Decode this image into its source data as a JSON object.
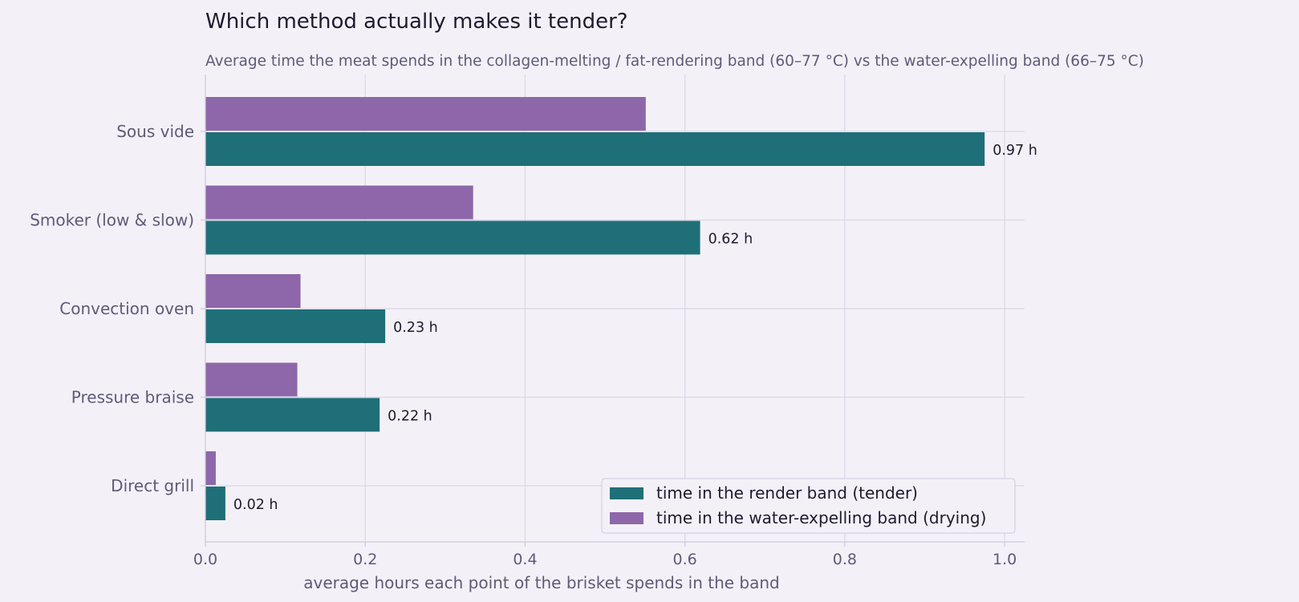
{
  "chart_data": {
    "type": "bar",
    "orientation": "horizontal",
    "title": "Which method actually makes it tender?",
    "subtitle": "Average time the meat spends in the collagen-melting / fat-rendering band (60–77 °C) vs the water-expelling band (66–75 °C)",
    "xlabel": "average hours each point of the brisket spends in the band",
    "ylabel": "",
    "xlim": [
      0,
      1.025
    ],
    "xticks": [
      0.0,
      0.2,
      0.4,
      0.6,
      0.8,
      1.0
    ],
    "xtick_labels": [
      "0.0",
      "0.2",
      "0.4",
      "0.6",
      "0.8",
      "1.0"
    ],
    "grid": true,
    "legend_position": "lower-right",
    "categories": [
      "Sous vide",
      "Smoker (low & slow)",
      "Convection oven",
      "Pressure braise",
      "Direct grill"
    ],
    "series": [
      {
        "name": "time in the render band (tender)",
        "color": "#1f6f78",
        "values": [
          0.975,
          0.619,
          0.225,
          0.218,
          0.025
        ],
        "data_labels": [
          "0.97 h",
          "0.62 h",
          "0.23 h",
          "0.22 h",
          "0.02 h"
        ]
      },
      {
        "name": "time in the water-expelling band (drying)",
        "color": "#8e67aa",
        "values": [
          0.551,
          0.335,
          0.119,
          0.115,
          0.013
        ]
      }
    ],
    "colors": {
      "background": "#f3f1f7",
      "grid": "#dcd6e6",
      "axis": "#cfc9dc"
    }
  }
}
